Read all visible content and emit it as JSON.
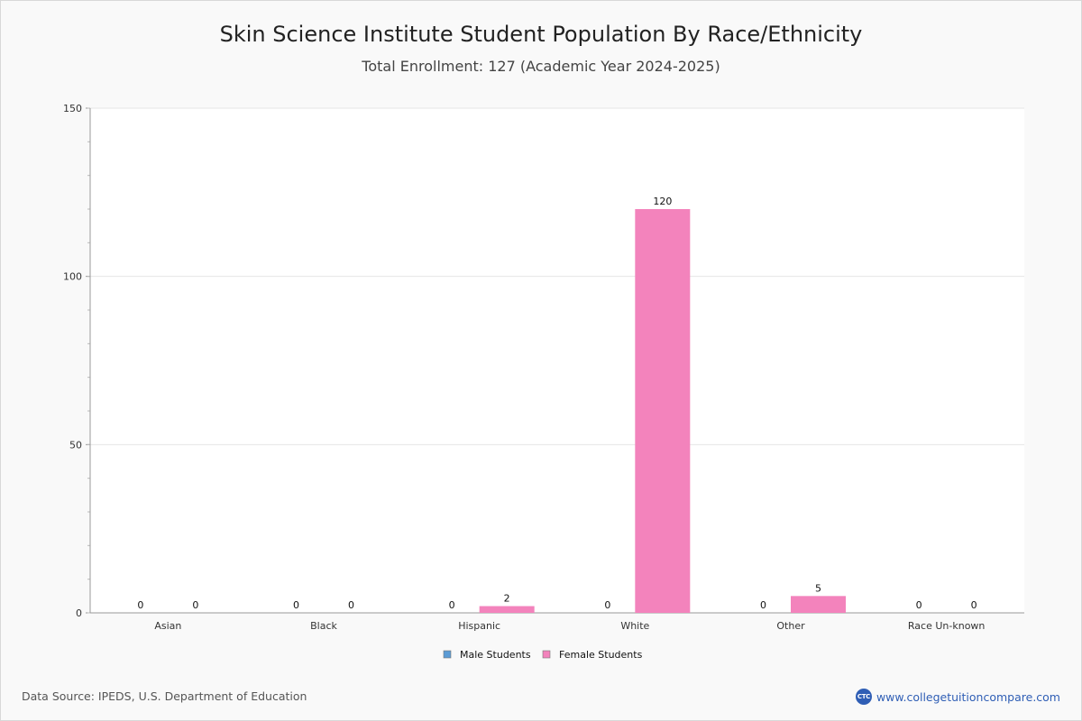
{
  "header": {
    "title": "Skin Science Institute Student Population By Race/Ethnicity",
    "subtitle": "Total Enrollment: 127 (Academic Year 2024-2025)"
  },
  "footer": {
    "source": "Data Source: IPEDS, U.S. Department of Education",
    "brand_text": "www.collegetuitioncompare.com",
    "brand_badge": "CTC"
  },
  "chart_data": {
    "type": "bar",
    "title": "Skin Science Institute Student Population By Race/Ethnicity",
    "subtitle": "Total Enrollment: 127 (Academic Year 2024-2025)",
    "categories": [
      "Asian",
      "Black",
      "Hispanic",
      "White",
      "Other",
      "Race Un-known"
    ],
    "series": [
      {
        "name": "Male Students",
        "color": "#5b9bd5",
        "values": [
          0,
          0,
          0,
          0,
          0,
          0
        ]
      },
      {
        "name": "Female Students",
        "color": "#f383bc",
        "values": [
          0,
          0,
          2,
          120,
          5,
          0
        ]
      }
    ],
    "ylim": [
      0,
      150
    ],
    "yticks": [
      0,
      50,
      100,
      150
    ],
    "grid": true,
    "legend_position": "bottom-center",
    "data_labels": true
  }
}
